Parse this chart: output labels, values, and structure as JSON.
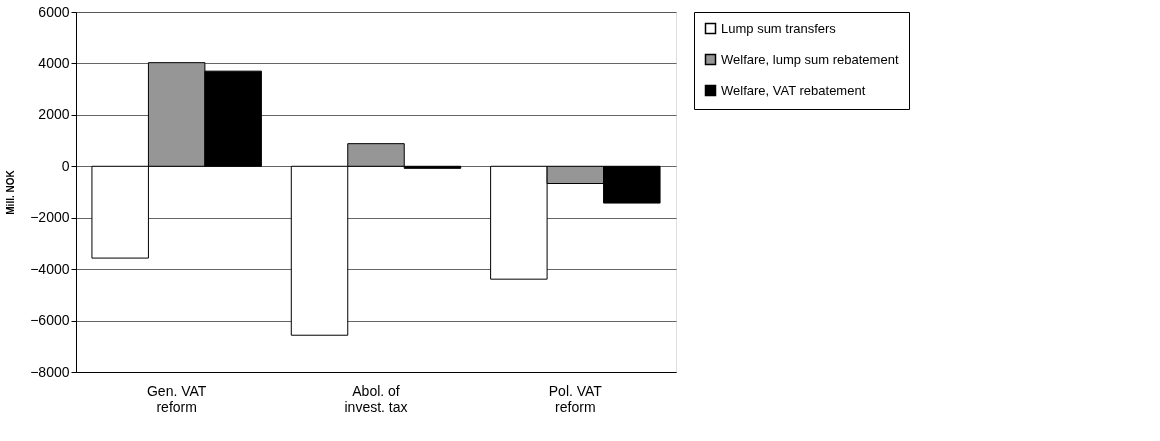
{
  "chart_data": {
    "type": "bar",
    "ylabel": "Mill. NOK",
    "categories": [
      "Gen. VAT reform",
      "Abol. of invest. tax",
      "Pol. VAT reform"
    ],
    "series": [
      {
        "name": "Lump sum transfers",
        "color": "#ffffff",
        "values": [
          -3570,
          -6570,
          -4390
        ]
      },
      {
        "name": "Welfare, lump sum rebatement",
        "color": "#969696",
        "values": [
          4030,
          880,
          -670
        ]
      },
      {
        "name": "Welfare, VAT rebatement",
        "color": "#000000",
        "values": [
          3700,
          -80,
          -1430
        ]
      }
    ],
    "ylim": [
      -8000,
      6000
    ],
    "yticks": [
      -8000,
      -6000,
      -4000,
      -2000,
      0,
      2000,
      4000,
      6000
    ],
    "grid": "y",
    "legend": "right"
  }
}
